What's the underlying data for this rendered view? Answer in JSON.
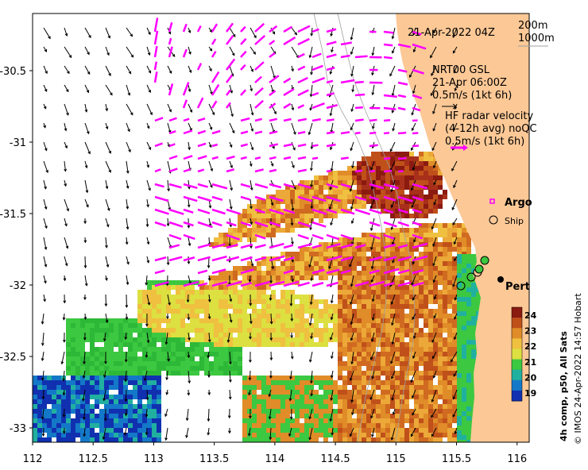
{
  "map": {
    "date_label": "21-Apr-2022 04Z",
    "isobath_labels": [
      "200m",
      "1000m"
    ],
    "model": {
      "name": "NRT00 GSL",
      "time": "21-Apr 06:00Z",
      "scale": "0.5m/s (1kt 6h)"
    },
    "radar": {
      "title": "HF radar velocity",
      "subtitle": "(4-12h avg) noQC",
      "scale": "0.5m/s (1kt 6h)"
    },
    "legend": {
      "argo": "Argo",
      "ship": "Ship"
    },
    "city": {
      "name": "Perth",
      "lon": 115.86,
      "lat": -31.95
    },
    "x_ticks": [
      "112",
      "112.5",
      "113",
      "113.5",
      "114",
      "114.5",
      "115",
      "115.5",
      "116"
    ],
    "y_ticks": [
      "-30.5",
      "-31",
      "-31.5",
      "-32",
      "-32.5",
      "-33"
    ],
    "x_range": [
      112,
      116.1
    ],
    "y_range": [
      -30.1,
      -33.1
    ],
    "colorbar": {
      "label": "4h comp, p50, All Sats",
      "ticks": [
        "24",
        "23",
        "22",
        "21",
        "20",
        "19"
      ],
      "range": [
        18.5,
        24.5
      ],
      "colors": [
        "#8b1a10",
        "#c0501a",
        "#e08c28",
        "#f0c040",
        "#dce040",
        "#3cc840",
        "#20b0a0",
        "#1478c8",
        "#1030b0"
      ]
    },
    "credit": "© IMOS 24-Apr-2022 14:57 Hobart",
    "colors": {
      "land": "#fcc896",
      "radar_arrow": "#ff00ff",
      "model_arrow": "#000000",
      "isobath": "#a0a0a0"
    }
  }
}
